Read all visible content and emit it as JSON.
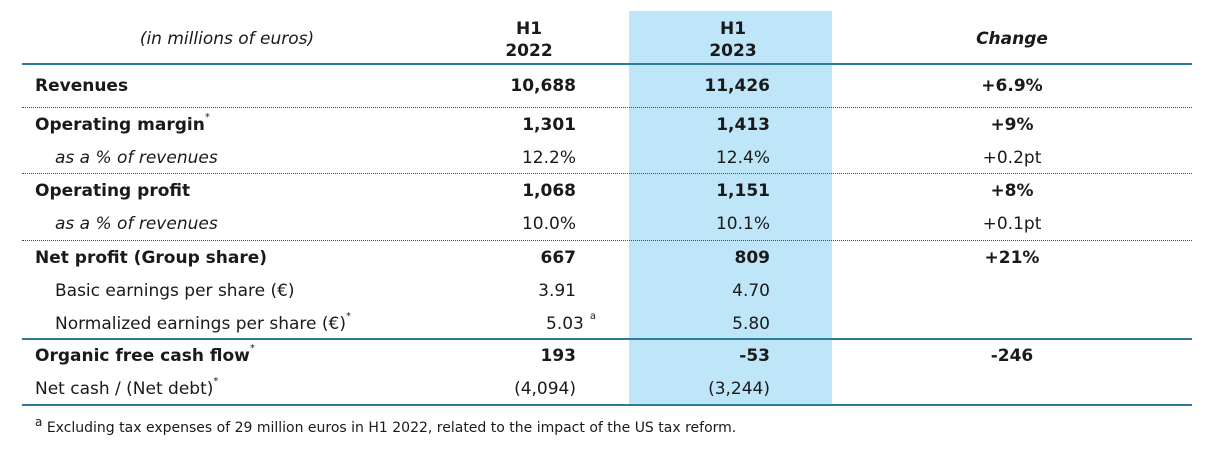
{
  "header": {
    "unit_label": "(in millions of euros)",
    "col1_line1": "H1",
    "col1_line2": "2022",
    "col2_line1": "H1",
    "col2_line2": "2023",
    "col3": "Change"
  },
  "rows": {
    "revenues": {
      "label": "Revenues",
      "h1_2022": "10,688",
      "h1_2023": "11,426",
      "change": "+6.9%"
    },
    "operating_margin": {
      "label": "Operating margin",
      "note": "*",
      "h1_2022": "1,301",
      "h1_2023": "1,413",
      "change": "+9%"
    },
    "om_pct": {
      "label": "as a % of revenues",
      "h1_2022": "12.2%",
      "h1_2023": "12.4%",
      "change": "+0.2pt"
    },
    "operating_profit": {
      "label": "Operating profit",
      "h1_2022": "1,068",
      "h1_2023": "1,151",
      "change": "+8%"
    },
    "op_pct": {
      "label": "as a % of revenues",
      "h1_2022": "10.0%",
      "h1_2023": "10.1%",
      "change": "+0.1pt"
    },
    "net_profit": {
      "label": "Net profit (Group share)",
      "h1_2022": "667",
      "h1_2023": "809",
      "change": "+21%"
    },
    "basic_eps": {
      "label": "Basic earnings per share (€)",
      "h1_2022": "3.91",
      "h1_2023": "4.70"
    },
    "normalized_eps": {
      "label": "Normalized earnings per share (€)",
      "note": "*",
      "h1_2022": "5.03",
      "h1_2022_note": "a",
      "h1_2023": "5.80"
    },
    "organic_fcf": {
      "label": "Organic free cash flow",
      "note": "*",
      "h1_2022": "193",
      "h1_2023": "-53",
      "change": "-246"
    },
    "net_cash": {
      "label": "Net cash / (Net debt)",
      "note": "*",
      "h1_2022": "(4,094)",
      "h1_2023": "(3,244)"
    }
  },
  "footnote": {
    "marker": "a",
    "text": "Excluding tax expenses of 29 million euros in H1 2022, related to the impact of the US tax reform."
  },
  "colors": {
    "highlight_column": "#bfe5f8",
    "rule_line": "#2b7b9c"
  }
}
